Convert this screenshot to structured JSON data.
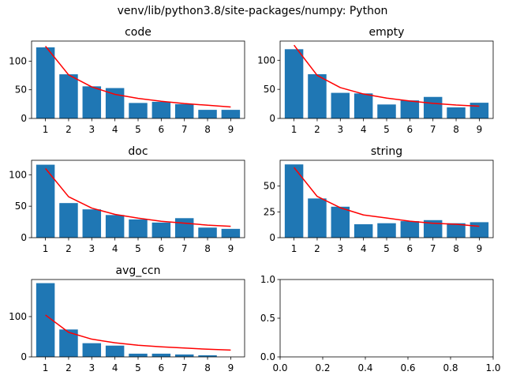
{
  "figure": {
    "suptitle": "venv/lib/python3.8/site-packages/numpy: Python"
  },
  "colors": {
    "bar": "#1f77b4",
    "line": "#ff0000",
    "axes": "#000000",
    "background": "#ffffff"
  },
  "chart_data": [
    {
      "type": "bar",
      "title": "code",
      "categories": [
        "1",
        "2",
        "3",
        "4",
        "5",
        "6",
        "7",
        "8",
        "9"
      ],
      "values": [
        124,
        77,
        56,
        53,
        27,
        29,
        25,
        15,
        15
      ],
      "overlay_line": [
        126,
        76,
        55,
        42,
        35,
        30,
        26,
        23,
        20
      ],
      "ylim": [
        0,
        135
      ],
      "yticks": [
        "0",
        "50",
        "100"
      ],
      "ytick_values": [
        0,
        50,
        100
      ],
      "grid": false
    },
    {
      "type": "bar",
      "title": "empty",
      "categories": [
        "1",
        "2",
        "3",
        "4",
        "5",
        "6",
        "7",
        "8",
        "9"
      ],
      "values": [
        119,
        76,
        44,
        43,
        24,
        31,
        37,
        19,
        27
      ],
      "overlay_line": [
        126,
        74,
        53,
        42,
        35,
        30,
        26,
        23,
        21
      ],
      "ylim": [
        0,
        133
      ],
      "yticks": [
        "0",
        "50",
        "100"
      ],
      "ytick_values": [
        0,
        50,
        100
      ],
      "grid": false
    },
    {
      "type": "bar",
      "title": "doc",
      "categories": [
        "1",
        "2",
        "3",
        "4",
        "5",
        "6",
        "7",
        "8",
        "9"
      ],
      "values": [
        116,
        55,
        45,
        36,
        29,
        24,
        31,
        16,
        14
      ],
      "overlay_line": [
        110,
        65,
        47,
        37,
        31,
        26,
        23,
        20,
        18
      ],
      "ylim": [
        0,
        123
      ],
      "yticks": [
        "0",
        "50",
        "100"
      ],
      "ytick_values": [
        0,
        50,
        100
      ],
      "grid": false
    },
    {
      "type": "bar",
      "title": "string",
      "categories": [
        "1",
        "2",
        "3",
        "4",
        "5",
        "6",
        "7",
        "8",
        "9"
      ],
      "values": [
        71,
        38,
        30,
        13,
        14,
        16,
        17,
        14,
        15
      ],
      "overlay_line": [
        68,
        40,
        29,
        22,
        19,
        16,
        14,
        13,
        11
      ],
      "ylim": [
        0,
        75
      ],
      "yticks": [
        "0",
        "25",
        "50"
      ],
      "ytick_values": [
        0,
        25,
        50
      ],
      "grid": false
    },
    {
      "type": "bar",
      "title": "avg_ccn",
      "categories": [
        "1",
        "2",
        "3",
        "4",
        "5",
        "6",
        "7",
        "8",
        "9"
      ],
      "values": [
        183,
        68,
        34,
        28,
        8,
        8,
        6,
        4,
        0
      ],
      "overlay_line": [
        104,
        61,
        44,
        35,
        29,
        25,
        22,
        19,
        17
      ],
      "ylim": [
        0,
        192
      ],
      "yticks": [
        "0",
        "100"
      ],
      "ytick_values": [
        0,
        100
      ],
      "grid": false
    },
    {
      "type": "empty",
      "title": "",
      "xlim": [
        0,
        1
      ],
      "ylim": [
        0,
        1
      ],
      "xticks": [
        "0.0",
        "0.2",
        "0.4",
        "0.6",
        "0.8",
        "1.0"
      ],
      "xtick_values": [
        0,
        0.2,
        0.4,
        0.6,
        0.8,
        1.0
      ],
      "yticks": [
        "0.0",
        "0.5",
        "1.0"
      ],
      "ytick_values": [
        0,
        0.5,
        1.0
      ],
      "grid": false
    }
  ]
}
